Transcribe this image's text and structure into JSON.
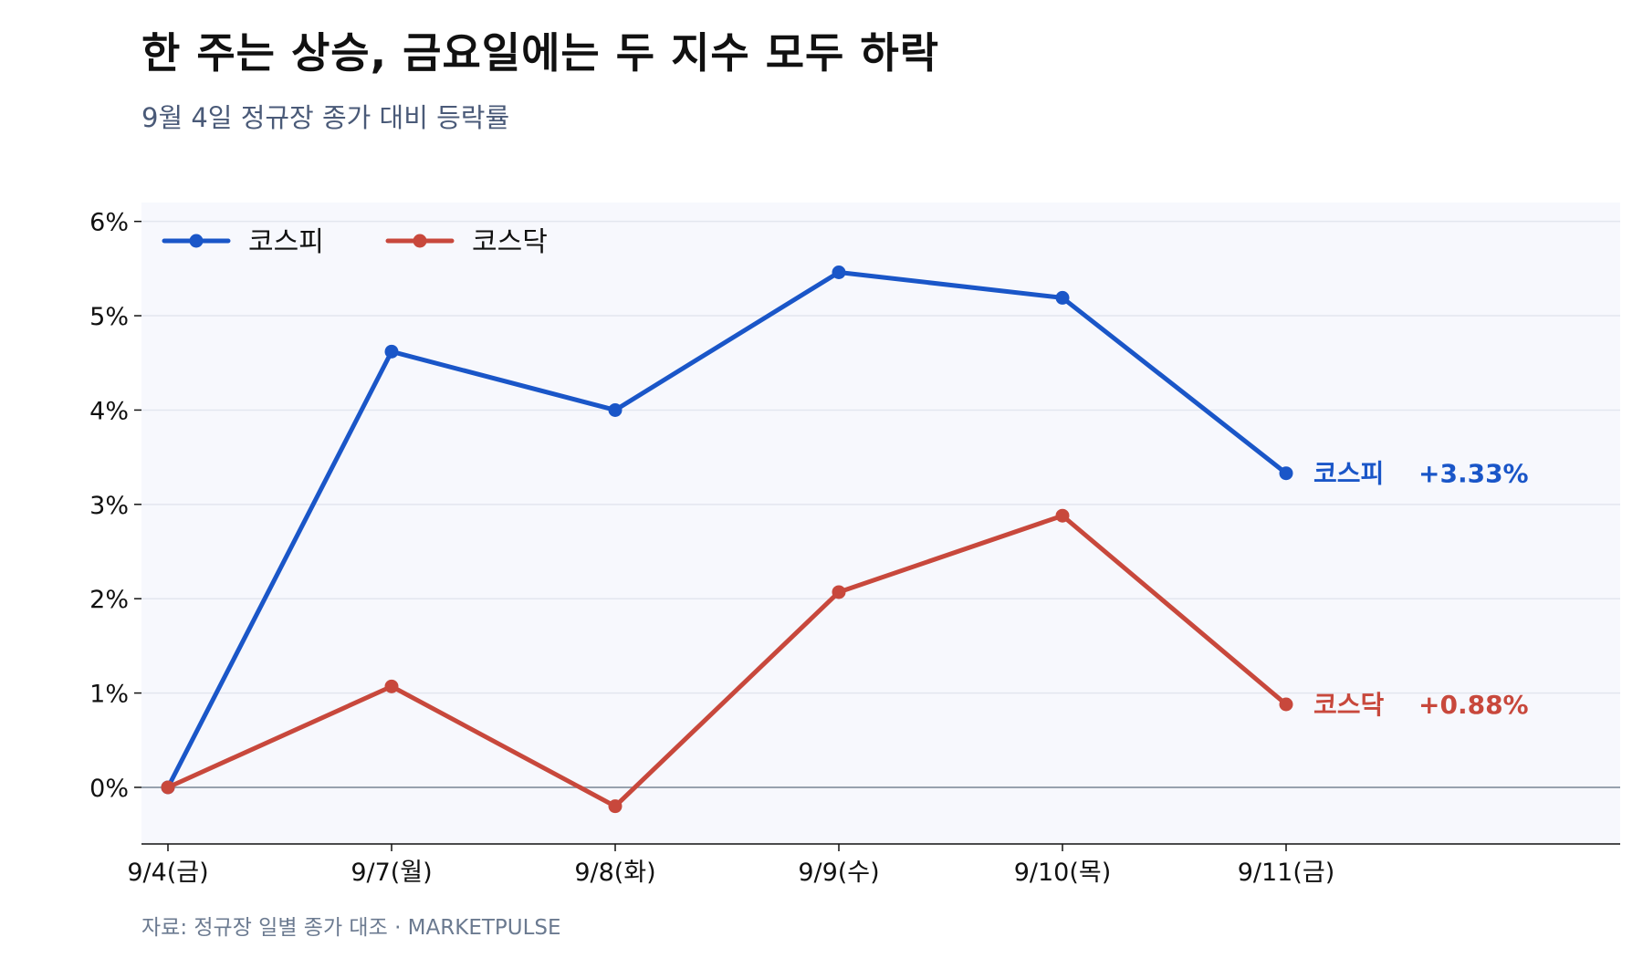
{
  "title": "한 주는 상승, 금요일에는 두 지수 모두 하락",
  "subtitle": "9월 4일 정규장 종가 대비 등락률",
  "source": "자료: 정규장 일별 종가 대조 · MARKETPULSE",
  "colors": {
    "kospi": "#1a56c8",
    "kosdaq": "#c8483c",
    "plot_bg": "#f7f8fd",
    "grid": "#e3e6ef",
    "zero_line": "#8a96a3"
  },
  "chart_data": {
    "type": "line",
    "categories": [
      "9/4(금)",
      "9/7(월)",
      "9/8(화)",
      "9/9(수)",
      "9/10(목)",
      "9/11(금)"
    ],
    "series": [
      {
        "name": "코스피",
        "values": [
          0,
          4.62,
          4.0,
          5.46,
          5.19,
          3.33
        ],
        "end_value_label": "+3.33%"
      },
      {
        "name": "코스닥",
        "values": [
          0,
          1.07,
          -0.2,
          2.07,
          2.88,
          0.88
        ],
        "end_value_label": "+0.88%"
      }
    ],
    "yticks": [
      0,
      1,
      2,
      3,
      4,
      5,
      6
    ],
    "ytick_labels": [
      "0%",
      "1%",
      "2%",
      "3%",
      "4%",
      "5%",
      "6%"
    ],
    "ylim": [
      -0.6,
      6.2
    ],
    "grid": true,
    "legend": "top-left"
  }
}
